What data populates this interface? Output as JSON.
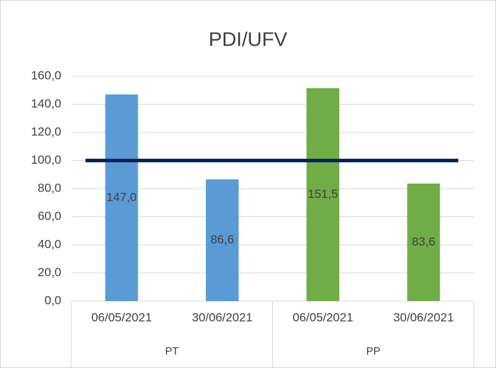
{
  "chart_data": {
    "type": "bar",
    "title": "PDI/UFV",
    "groups": [
      {
        "name": "PT",
        "color": "#5b9bd5",
        "categories": [
          "06/05/2021",
          "30/06/2021"
        ],
        "values": [
          147.0,
          86.6
        ],
        "value_labels": [
          "147,0",
          "86,6"
        ]
      },
      {
        "name": "PP",
        "color": "#70ad47",
        "categories": [
          "06/05/2021",
          "30/06/2021"
        ],
        "values": [
          151.5,
          83.6
        ],
        "value_labels": [
          "151,5",
          "83,6"
        ]
      }
    ],
    "reference_line": {
      "value": 100,
      "color": "#002060"
    },
    "ylim": [
      0,
      160
    ],
    "yticks": [
      {
        "value": 0,
        "label": "0,0"
      },
      {
        "value": 20,
        "label": "20,0"
      },
      {
        "value": 40,
        "label": "40,0"
      },
      {
        "value": 60,
        "label": "60,0"
      },
      {
        "value": 80,
        "label": "80,0"
      },
      {
        "value": 100,
        "label": "100,0"
      },
      {
        "value": 120,
        "label": "120,0"
      },
      {
        "value": 140,
        "label": "140,0"
      },
      {
        "value": 160,
        "label": "160,0"
      }
    ],
    "grid": true
  }
}
